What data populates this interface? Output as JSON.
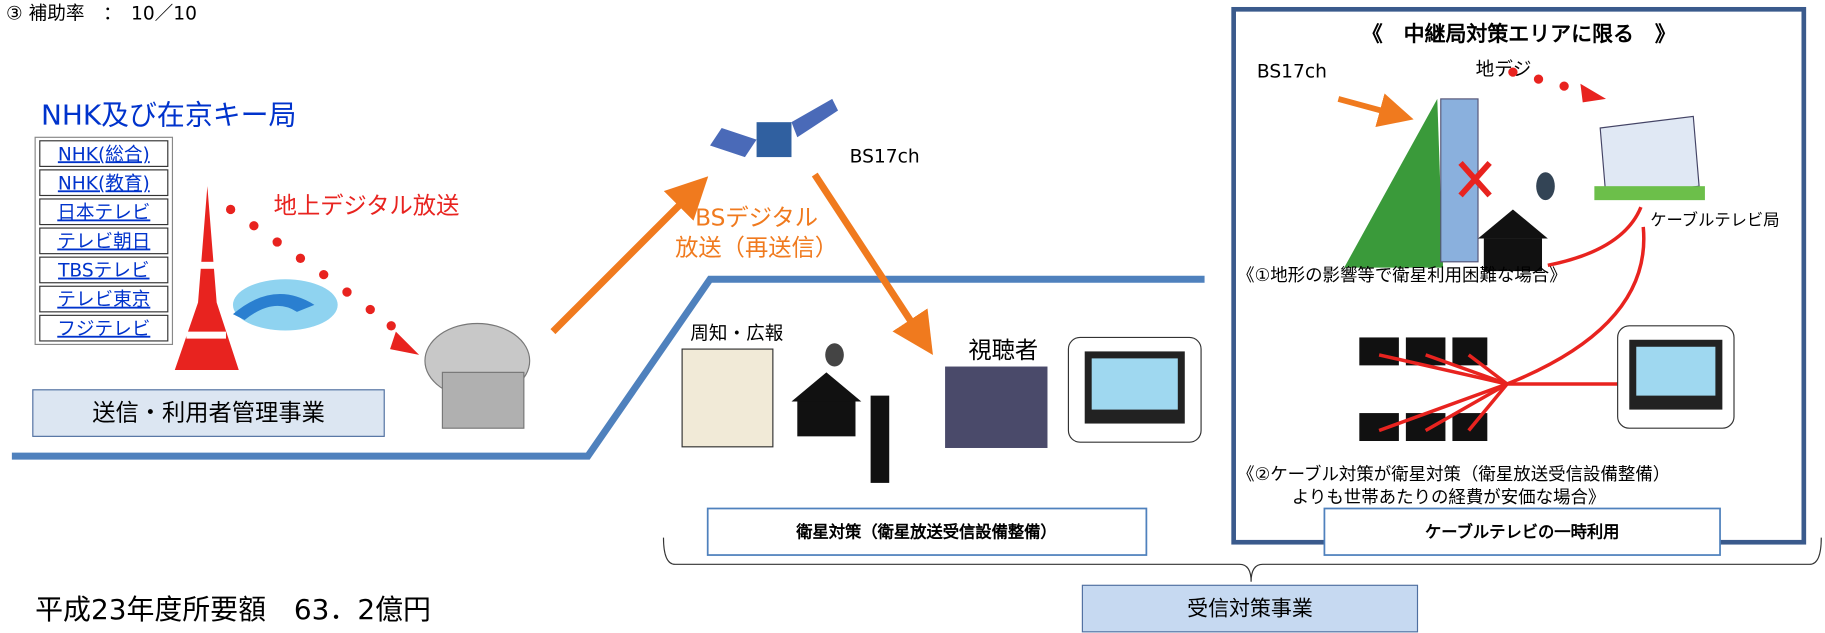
{
  "header": {
    "subsidy_rate": "③ 補助率　：　10／10"
  },
  "transmission": {
    "title": "NHK及び在京キー局",
    "stations": [
      "NHK(総合)",
      "NHK(教育)",
      "日本テレビ",
      "テレビ朝日",
      "TBSテレビ",
      "テレビ東京",
      "フジテレビ"
    ],
    "terrestrial_label": "地上デジタル放送",
    "business": "送信・利用者管理事業"
  },
  "satellite": {
    "channel": "BS17ch",
    "broadcast_line1": "BSデジタル",
    "broadcast_line2": "放送（再送信）"
  },
  "reception": {
    "publicity": "周知・広報",
    "viewer": "視聴者",
    "satellite_measure": "衛星対策（衛星放送受信設備整備）"
  },
  "relay_area": {
    "title": "《　中継局対策エリアに限る　》",
    "bs_channel": "BS17ch",
    "terrestrial": "地デジ",
    "cable_station": "ケーブルテレビ局",
    "case1": "《①地形の影響等で衛星利用困難な場合》",
    "case2_line1": "《②ケーブル対策が衛星対策（衛星放送受信設備整備）",
    "case2_line2": "よりも世帯あたりの経費が安価な場合》",
    "cable_measure": "ケーブルテレビの一時利用"
  },
  "footer": {
    "reception_business": "受信対策事業",
    "budget": "平成23年度所要額　63．2億円"
  }
}
